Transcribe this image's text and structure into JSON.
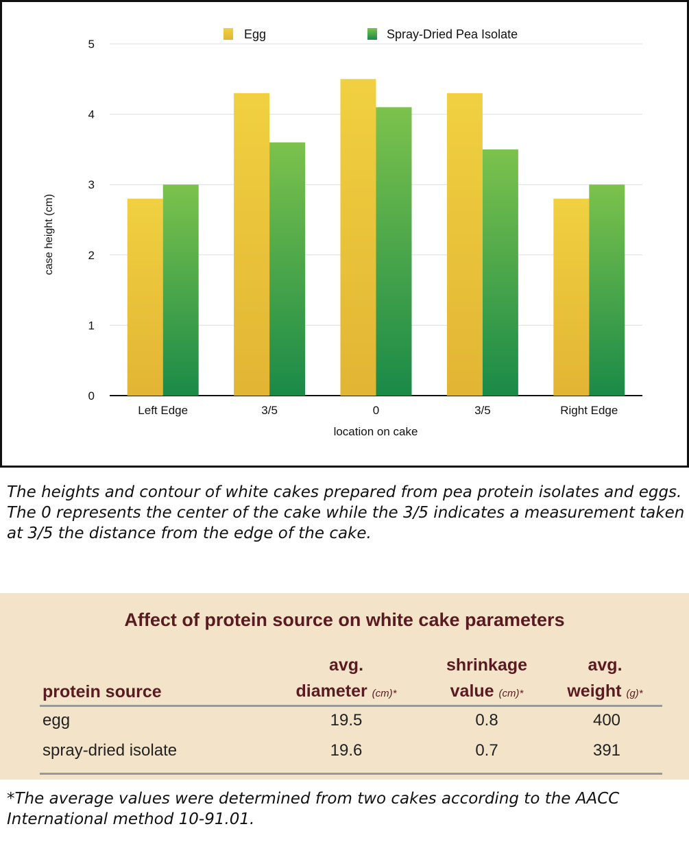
{
  "chart_data": {
    "type": "bar",
    "categories": [
      "Left Edge",
      "3/5",
      "0",
      "3/5",
      "Right Edge"
    ],
    "series": [
      {
        "name": "Egg",
        "values": [
          2.8,
          4.3,
          4.5,
          4.3,
          2.8
        ],
        "color": "#e9c43a"
      },
      {
        "name": "Spray-Dried Pea Isolate",
        "values": [
          3.0,
          3.6,
          4.1,
          3.5,
          3.0
        ],
        "color": "#3aa24a"
      }
    ],
    "title": "",
    "xlabel": "location on cake",
    "ylabel": "case height (cm)",
    "ylim": [
      0,
      5
    ],
    "yticks": [
      0,
      1,
      2,
      3,
      4,
      5
    ],
    "grid": true,
    "legend": "top"
  },
  "caption": "The heights and contour of white cakes prepared from pea protein isolates and eggs. The 0 represents the center of the cake while the 3/5 indicates a measurement taken at 3/5 the distance from the edge of the cake.",
  "table": {
    "title": "Affect of protein source on white cake parameters",
    "headers": [
      {
        "line1": "",
        "line2": "protein source",
        "unit": ""
      },
      {
        "line1": "avg.",
        "line2": "diameter",
        "unit": "(cm)*"
      },
      {
        "line1": "shrinkage",
        "line2": "value",
        "unit": "(cm)*"
      },
      {
        "line1": "avg.",
        "line2": "weight",
        "unit": "(g)*"
      }
    ],
    "rows": [
      [
        "egg",
        "19.5",
        "0.8",
        "400"
      ],
      [
        "spray-dried isolate",
        "19.6",
        "0.7",
        "391"
      ]
    ]
  },
  "footnote": "*The average values were determined from two cakes according to the AACC International method 10-91.01."
}
